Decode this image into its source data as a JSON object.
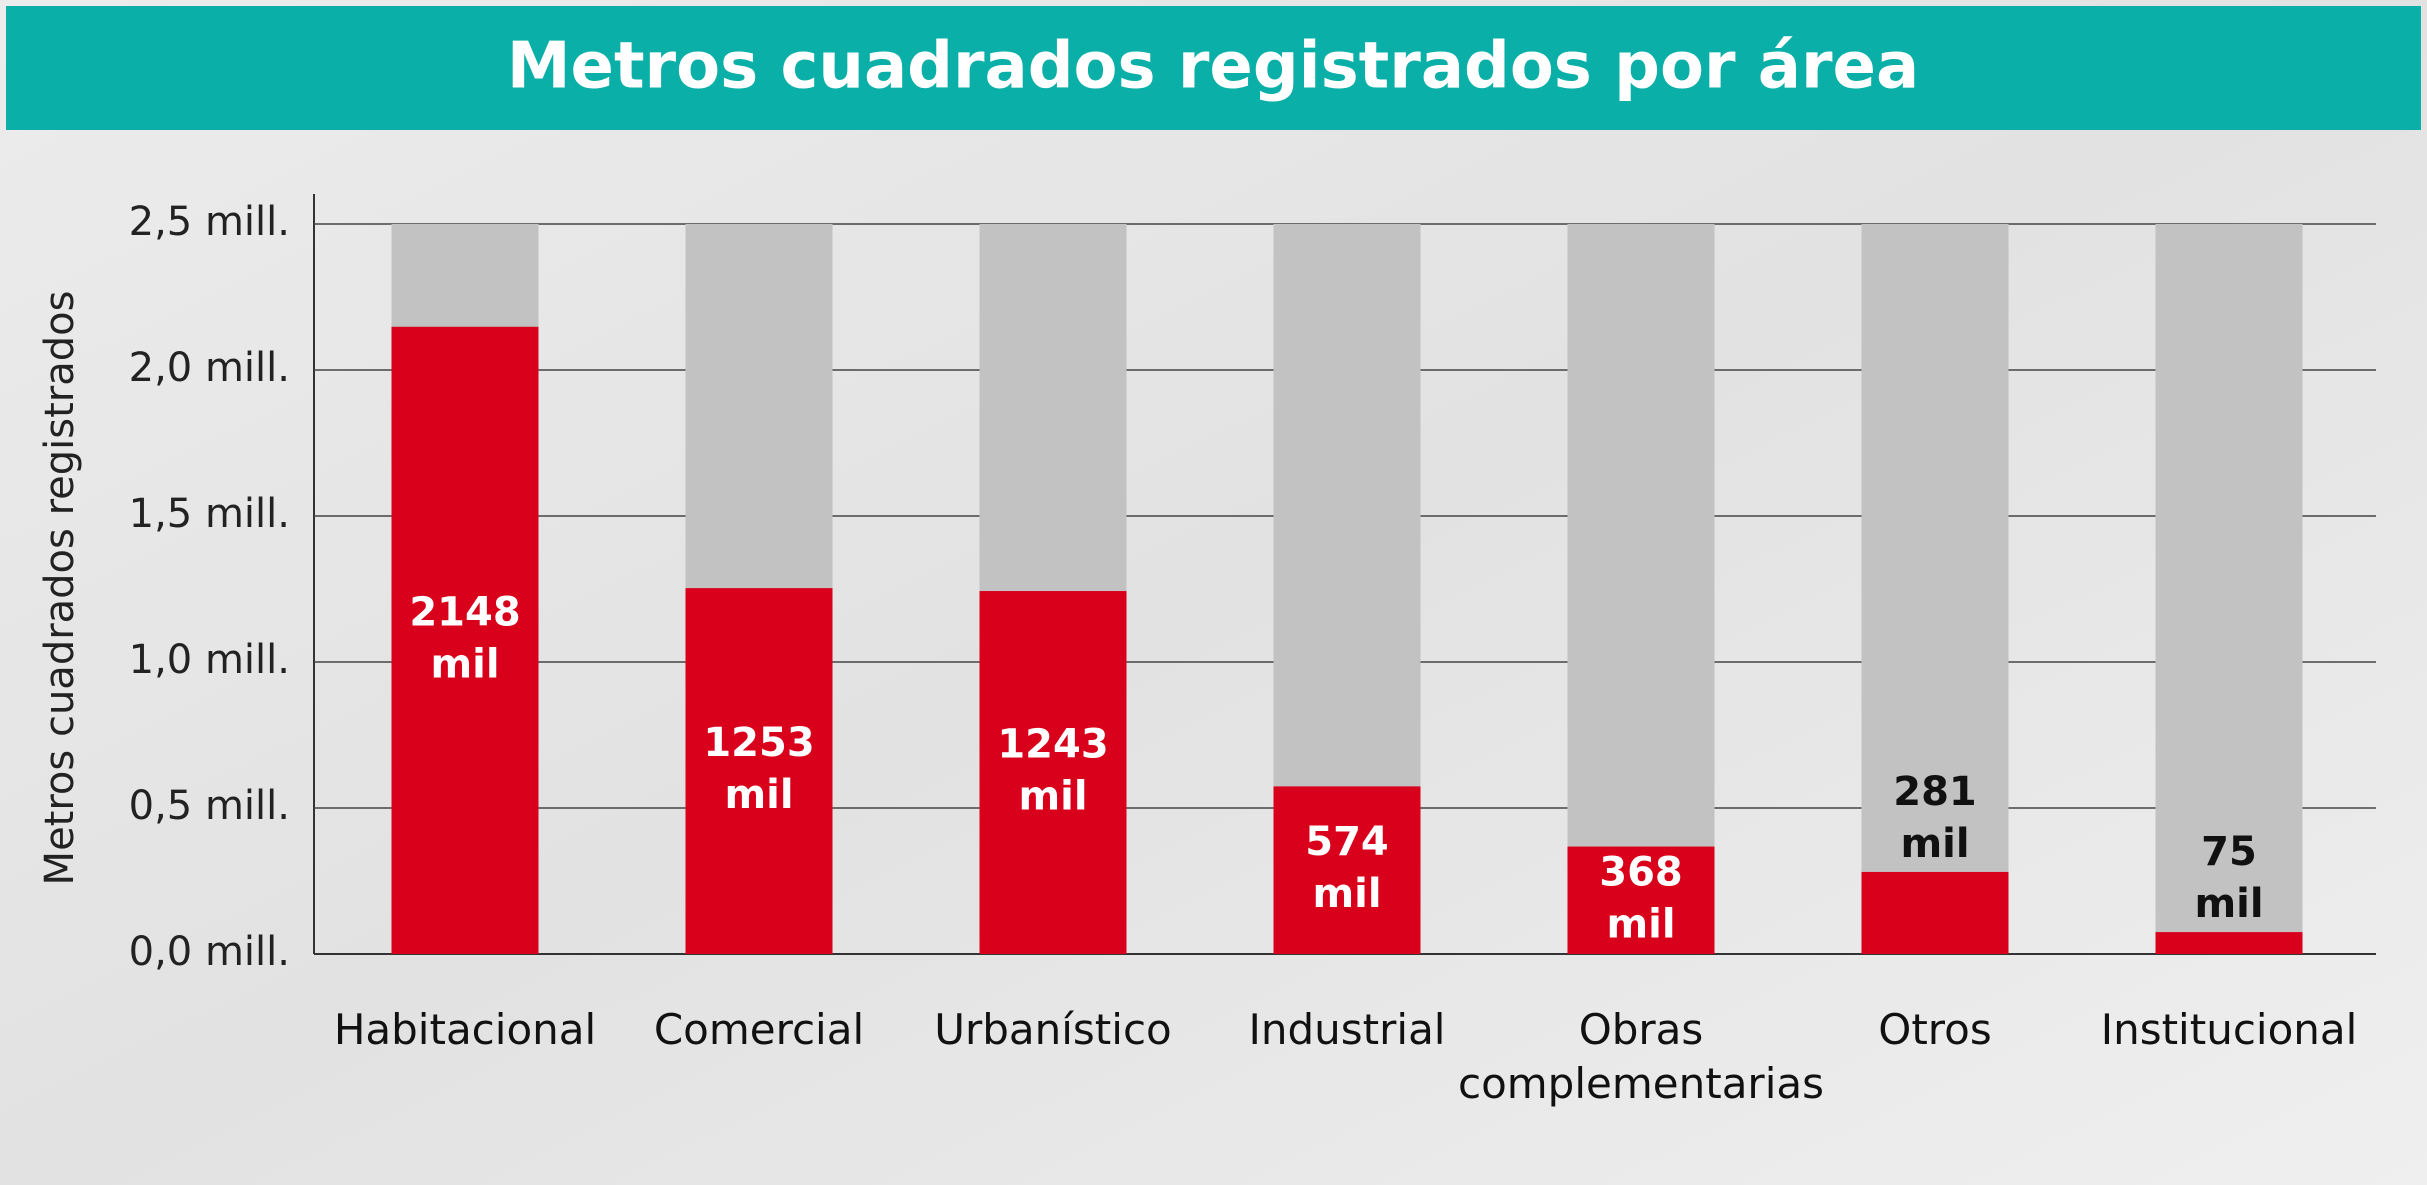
{
  "chart_data": {
    "type": "bar",
    "title": "Metros cuadrados registrados por área",
    "y_label": "Metros cuadrados registrados",
    "categories": [
      "Habitacional",
      "Comercial",
      "Urbanístico",
      "Industrial",
      "Obras complementarias",
      "Otros",
      "Institucional"
    ],
    "values": [
      2.148,
      1.253,
      1.243,
      0.574,
      0.368,
      0.281,
      0.075
    ],
    "value_labels": [
      "2148 mil",
      "1253 mil",
      "1243 mil",
      "574 mil",
      "368 mil",
      "281 mil",
      "75 mil"
    ],
    "color": "#d9001b",
    "background_bar_color": "#c2c2c2",
    "ylim": [
      0,
      2.5
    ],
    "yticks": [
      {
        "value": 0,
        "label": "0,0 mill."
      },
      {
        "value": 0.5,
        "label": "0,5 mill."
      },
      {
        "value": 1,
        "label": "1,0 mill."
      },
      {
        "value": 1.5,
        "label": "1,5 mill."
      },
      {
        "value": 2,
        "label": "2,0 mill."
      },
      {
        "value": 2.5,
        "label": "2,5 mill."
      }
    ],
    "grid": true
  }
}
